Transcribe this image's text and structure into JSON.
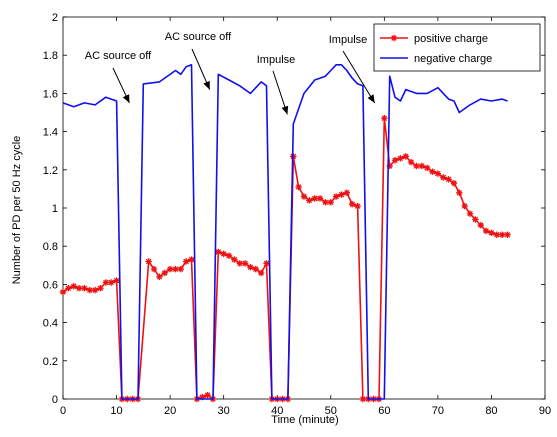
{
  "chart_data": {
    "type": "line",
    "title": "",
    "xlabel": "Time (minute)",
    "ylabel": "Number of PD per 50 Hz cycle",
    "xlim": [
      0,
      90
    ],
    "ylim": [
      0,
      2
    ],
    "xticks": [
      0,
      10,
      20,
      30,
      40,
      50,
      60,
      70,
      80,
      90
    ],
    "yticks": [
      0,
      0.2,
      0.4,
      0.6,
      0.8,
      1,
      1.2,
      1.4,
      1.6,
      1.8,
      2
    ],
    "xtick_labels": [
      "0",
      "10",
      "20",
      "30",
      "40",
      "50",
      "60",
      "70",
      "80",
      "90"
    ],
    "ytick_labels": [
      "0",
      "0.2",
      "0.4",
      "0.6",
      "0.8",
      "1",
      "1.2",
      "1.4",
      "1.6",
      "1.8",
      "2"
    ],
    "grid": false,
    "legend_position": "top-right",
    "series": [
      {
        "name": "positive charge",
        "color": "#ee1111",
        "marker": "star",
        "x": [
          0,
          1,
          2,
          3,
          4,
          5,
          6,
          7,
          8,
          9,
          10,
          11,
          12,
          13,
          14,
          16,
          17,
          18,
          19,
          20,
          21,
          22,
          23,
          24,
          25,
          26,
          27,
          28,
          29,
          30,
          31,
          32,
          33,
          34,
          35,
          36,
          37,
          38,
          39,
          40,
          41,
          42,
          43,
          44,
          45,
          46,
          47,
          48,
          49,
          50,
          51,
          52,
          53,
          54,
          55,
          56,
          57,
          58,
          59,
          60,
          61,
          62,
          63,
          64,
          65,
          66,
          67,
          68,
          69,
          70,
          71,
          72,
          73,
          74,
          75,
          76,
          77,
          78,
          79,
          80,
          81,
          82,
          83
        ],
        "y": [
          0.56,
          0.58,
          0.59,
          0.58,
          0.58,
          0.57,
          0.57,
          0.58,
          0.61,
          0.61,
          0.62,
          0,
          0,
          0,
          0,
          0.72,
          0.68,
          0.64,
          0.66,
          0.68,
          0.68,
          0.68,
          0.72,
          0.73,
          0,
          0.01,
          0.02,
          0,
          0.77,
          0.76,
          0.75,
          0.73,
          0.71,
          0.71,
          0.69,
          0.68,
          0.66,
          0.71,
          0,
          0,
          0,
          0,
          1.27,
          1.11,
          1.06,
          1.04,
          1.05,
          1.05,
          1.03,
          1.03,
          1.06,
          1.07,
          1.08,
          1.02,
          1.01,
          0,
          0,
          0,
          0,
          1.47,
          1.22,
          1.25,
          1.26,
          1.27,
          1.24,
          1.22,
          1.22,
          1.21,
          1.19,
          1.18,
          1.16,
          1.15,
          1.13,
          1.08,
          1.01,
          0.97,
          0.94,
          0.91,
          0.88,
          0.87,
          0.86,
          0.86,
          0.86
        ]
      },
      {
        "name": "negative charge",
        "color": "#1010ee",
        "marker": "none",
        "x": [
          0,
          2,
          4,
          6,
          8,
          10,
          11,
          12,
          13,
          14,
          15,
          18,
          21,
          22,
          23,
          24,
          25,
          26,
          27,
          28,
          29,
          31,
          33,
          35,
          37,
          38,
          39,
          40,
          41,
          42,
          43,
          45,
          47,
          48,
          49,
          50,
          51,
          52,
          53,
          54,
          55,
          56,
          57,
          58,
          59,
          60,
          61,
          62,
          63,
          64,
          66,
          68,
          70,
          72,
          73,
          74,
          76,
          78,
          80,
          82,
          83
        ],
        "y": [
          1.55,
          1.53,
          1.55,
          1.54,
          1.58,
          1.56,
          0,
          0,
          0,
          0,
          1.65,
          1.66,
          1.72,
          1.7,
          1.74,
          1.75,
          0,
          0,
          0,
          0,
          1.7,
          1.67,
          1.64,
          1.6,
          1.66,
          1.64,
          0,
          0,
          0,
          0,
          1.44,
          1.6,
          1.67,
          1.68,
          1.69,
          1.72,
          1.75,
          1.75,
          1.72,
          1.68,
          1.65,
          1.64,
          0,
          0,
          0,
          0,
          1.69,
          1.58,
          1.56,
          1.62,
          1.6,
          1.6,
          1.63,
          1.57,
          1.56,
          1.5,
          1.54,
          1.57,
          1.56,
          1.57,
          1.56
        ]
      }
    ],
    "annotations": [
      {
        "text": "AC source off",
        "tip_x": 12.4,
        "tip_y": 1.55
      },
      {
        "text": "AC source off",
        "tip_x": 27.4,
        "tip_y": 1.62
      },
      {
        "text": "Impulse",
        "tip_x": 41.9,
        "tip_y": 1.49
      },
      {
        "text": "Impulse",
        "tip_x": 58.2,
        "tip_y": 1.55
      }
    ]
  }
}
